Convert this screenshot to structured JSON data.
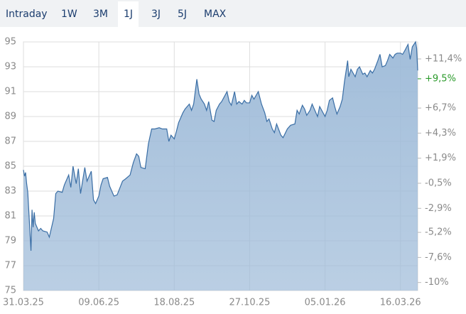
{
  "tabs": {
    "items": [
      "Intraday",
      "1W",
      "3M",
      "1J",
      "3J",
      "5J",
      "MAX"
    ],
    "selected_index": 3
  },
  "chart_data": {
    "type": "area",
    "x": [
      "31.03.25",
      "01.04.25",
      "02.04.25",
      "03.04.25",
      "04.04.25",
      "07.04.25",
      "08.04.25",
      "09.04.25",
      "10.04.25",
      "11.04.25",
      "14.04.25",
      "16.04.25",
      "18.04.25",
      "22.04.25",
      "24.04.25",
      "28.04.25",
      "30.04.25",
      "02.05.25",
      "06.05.25",
      "08.05.25",
      "12.05.25",
      "14.05.25",
      "16.05.25",
      "19.05.25",
      "21.05.25",
      "23.05.25",
      "27.05.25",
      "29.05.25",
      "02.06.25",
      "04.06.25",
      "06.06.25",
      "09.06.25",
      "11.06.25",
      "13.06.25",
      "17.06.25",
      "19.06.25",
      "23.06.25",
      "26.06.25",
      "01.07.25",
      "04.07.25",
      "08.07.25",
      "11.07.25",
      "14.07.25",
      "16.07.25",
      "18.07.25",
      "22.07.25",
      "25.07.25",
      "28.07.25",
      "31.07.25",
      "04.08.25",
      "07.08.25",
      "11.08.25",
      "13.08.25",
      "15.08.25",
      "18.08.25",
      "20.08.25",
      "22.08.25",
      "26.08.25",
      "28.08.25",
      "01.09.25",
      "03.09.25",
      "05.09.25",
      "08.09.25",
      "10.09.25",
      "12.09.25",
      "15.09.25",
      "17.09.25",
      "19.09.25",
      "22.09.25",
      "24.09.25",
      "26.09.25",
      "29.09.25",
      "01.10.25",
      "06.10.25",
      "08.10.25",
      "10.10.25",
      "13.10.25",
      "15.10.25",
      "17.10.25",
      "20.10.25",
      "22.10.25",
      "24.10.25",
      "27.10.25",
      "29.10.25",
      "31.10.25",
      "04.11.25",
      "07.11.25",
      "10.11.25",
      "12.11.25",
      "14.11.25",
      "17.11.25",
      "19.11.25",
      "21.11.25",
      "25.11.25",
      "27.11.25",
      "01.12.25",
      "04.12.25",
      "08.12.25",
      "10.12.25",
      "12.12.25",
      "15.12.25",
      "17.12.25",
      "19.12.25",
      "22.12.25",
      "24.12.25",
      "29.12.25",
      "31.12.25",
      "05.01.26",
      "07.01.26",
      "09.01.26",
      "12.01.26",
      "14.01.26",
      "16.01.26",
      "19.01.26",
      "21.01.26",
      "23.01.26",
      "26.01.26",
      "27.01.26",
      "29.01.26",
      "02.02.26",
      "04.02.26",
      "06.02.26",
      "09.02.26",
      "11.02.26",
      "13.02.26",
      "16.02.26",
      "18.02.26",
      "20.02.26",
      "23.02.26",
      "25.02.26",
      "27.02.26",
      "02.03.26",
      "04.03.26",
      "06.03.26",
      "09.03.26",
      "11.03.26",
      "13.03.26",
      "16.03.26",
      "18.03.26",
      "20.03.26",
      "23.03.26",
      "25.03.26",
      "27.03.26",
      "30.03.26",
      "31.03.26",
      "01.04.26"
    ],
    "values": [
      84.7,
      84.2,
      84.5,
      83.6,
      82.9,
      78.2,
      81.5,
      80.1,
      81.3,
      80.4,
      79.8,
      80.0,
      79.8,
      79.7,
      79.3,
      80.8,
      82.8,
      83.0,
      82.9,
      83.5,
      84.3,
      83.3,
      85.0,
      83.6,
      84.8,
      82.8,
      84.9,
      83.8,
      84.6,
      82.3,
      82.0,
      82.6,
      83.5,
      84.0,
      84.1,
      83.4,
      82.6,
      82.7,
      83.8,
      84.0,
      84.3,
      85.3,
      86.0,
      85.8,
      84.9,
      84.8,
      86.8,
      88.0,
      88.0,
      88.1,
      88.0,
      88.0,
      87.0,
      87.5,
      87.2,
      87.8,
      88.5,
      89.3,
      89.6,
      90.0,
      89.5,
      90.0,
      92.0,
      90.8,
      90.4,
      90.0,
      89.5,
      90.2,
      88.7,
      88.6,
      89.5,
      90.0,
      90.2,
      91.0,
      90.2,
      89.9,
      91.0,
      90.0,
      90.2,
      90.0,
      90.3,
      90.1,
      90.1,
      90.7,
      90.4,
      91.0,
      90.0,
      89.3,
      88.6,
      88.8,
      88.0,
      87.7,
      88.4,
      87.5,
      87.3,
      88.0,
      88.3,
      88.4,
      89.5,
      89.2,
      89.9,
      89.6,
      89.1,
      89.5,
      90.0,
      89.0,
      89.8,
      89.0,
      89.5,
      90.3,
      90.5,
      89.8,
      89.2,
      89.8,
      90.4,
      91.8,
      93.5,
      92.2,
      92.8,
      92.2,
      92.8,
      93.0,
      92.4,
      92.5,
      92.2,
      92.7,
      92.5,
      92.8,
      93.5,
      94.0,
      93.0,
      93.1,
      93.5,
      94.0,
      93.7,
      94.0,
      94.1,
      94.1,
      94.0,
      94.3,
      94.8,
      93.6,
      94.6,
      95.0,
      94.5,
      92.7
    ],
    "color": "#3a6ea5",
    "fill_color": "#9dbad8",
    "xlim": [
      "31.03.25",
      "01.04.26"
    ],
    "xticks": [
      "31.03.25",
      "09.06.25",
      "18.08.25",
      "27.10.25",
      "05.01.26",
      "16.03.26"
    ],
    "ylim": [
      75,
      95
    ],
    "yticks": [
      75,
      77,
      79,
      81,
      83,
      85,
      87,
      89,
      91,
      93,
      95
    ],
    "y2lim": [
      -10.77,
      13.03
    ],
    "y2ticks": [
      {
        "value": 11.4,
        "label": "+11,4%"
      },
      {
        "value": 6.7,
        "label": "+6,7%"
      },
      {
        "value": 4.3,
        "label": "+4,3%"
      },
      {
        "value": 1.9,
        "label": "+1,9%"
      },
      {
        "value": -0.5,
        "label": "-0,5%"
      },
      {
        "value": -2.9,
        "label": "-2,9%"
      },
      {
        "value": -5.2,
        "label": "-5,2%"
      },
      {
        "value": -7.6,
        "label": "-7,6%"
      },
      {
        "value": -10,
        "label": "-10%"
      }
    ],
    "y2_current": {
      "value": 9.5,
      "label": "+9,5%",
      "color": "#2a9a2a"
    },
    "grid": true
  }
}
